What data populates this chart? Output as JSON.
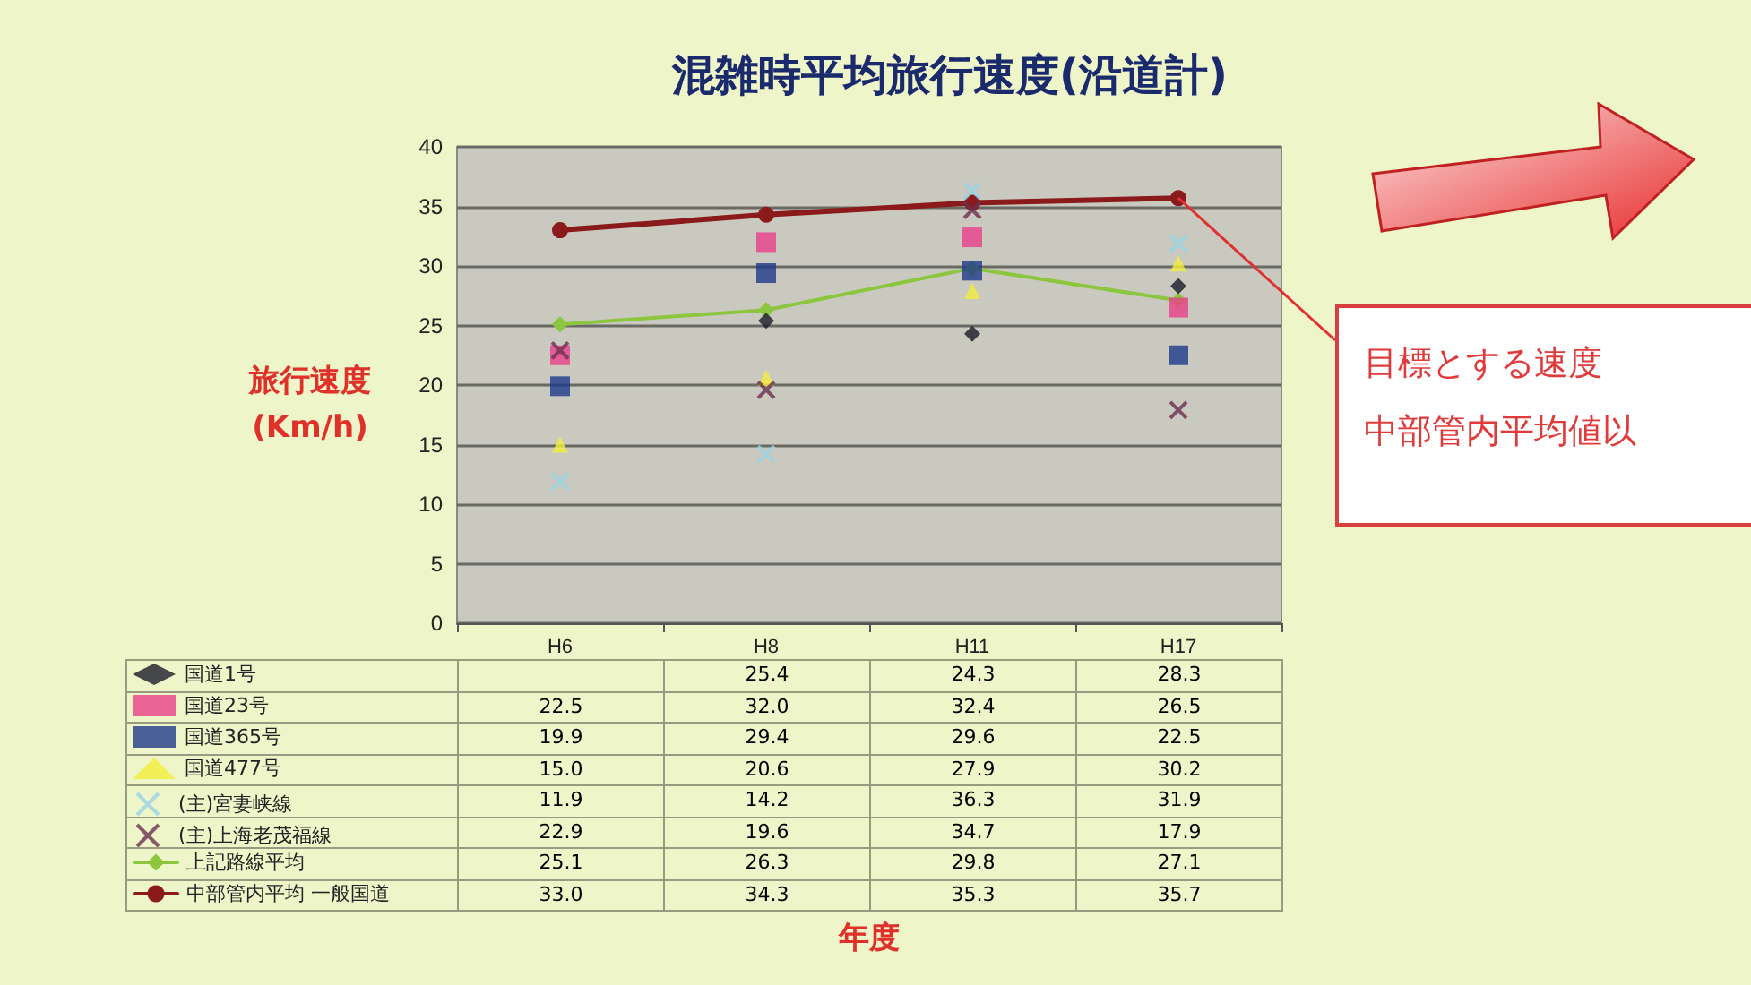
{
  "chart_data": {
    "type": "scatter",
    "title": "混雑時平均旅行速度(沿道計)",
    "ylabel": "旅行速度\n(Km/h)",
    "categories": [
      "H6",
      "H8",
      "H11",
      "H17"
    ],
    "ylim": [
      0,
      40
    ],
    "yticks": [
      0,
      5,
      10,
      15,
      20,
      25,
      30,
      35,
      40
    ],
    "grid": "y",
    "legend": "bottom left",
    "series": [
      {
        "name": "国道1号",
        "color": "#1c1c28",
        "marker": "diamond",
        "values": [
          null,
          25.4,
          24.3,
          28.3
        ],
        "value_labels": [
          null,
          "25.4",
          "24.3",
          "28.3"
        ]
      },
      {
        "name": "国道23号",
        "color": "#e8408a",
        "marker": "square",
        "values": [
          22.5,
          32.0,
          32.4,
          26.5
        ],
        "value_labels": [
          "22.5",
          "32.0",
          "32.4",
          "26.5"
        ]
      },
      {
        "name": "国道365号",
        "color": "#1f3a8a",
        "marker": "square",
        "values": [
          19.9,
          29.4,
          29.6,
          22.5
        ],
        "value_labels": [
          "19.9",
          "29.4",
          "29.6",
          "22.5"
        ]
      },
      {
        "name": "国道477号",
        "color": "#f2ee3a",
        "marker": "triangle",
        "values": [
          15.0,
          20.6,
          27.9,
          30.2
        ],
        "value_labels": [
          "15.0",
          "20.6",
          "27.9",
          "30.2"
        ]
      },
      {
        "name": "(主)宮妻峡線",
        "color": "#9ad4e6",
        "marker": "cross",
        "values": [
          11.9,
          14.2,
          36.3,
          31.9
        ],
        "value_labels": [
          "11.9",
          "14.2",
          "36.3",
          "31.9"
        ]
      },
      {
        "name": "(主)上海老茂福線",
        "color": "#6b2f4f",
        "marker": "cross",
        "values": [
          22.9,
          19.6,
          34.7,
          17.9
        ],
        "value_labels": [
          "22.9",
          "19.6",
          "34.7",
          "17.9"
        ]
      },
      {
        "name": "上記路線平均",
        "type": "line",
        "color": "#8cc63f",
        "marker": "diamond",
        "values": [
          25.1,
          26.3,
          29.8,
          27.1
        ],
        "value_labels": [
          "25.1",
          "26.3",
          "29.8",
          "27.1"
        ]
      },
      {
        "name": "中部管内平均 一般国道",
        "type": "line",
        "color": "#8b1a1a",
        "marker": "circle",
        "values": [
          33.0,
          34.3,
          35.3,
          35.7
        ],
        "value_labels": [
          "33.0",
          "34.3",
          "35.3",
          "35.7"
        ]
      }
    ],
    "annotations": [
      "年度",
      {
        "text": "目標とする速度",
        "x": "H17",
        "y": 35.7
      },
      "中部管内平均値以"
    ]
  }
}
